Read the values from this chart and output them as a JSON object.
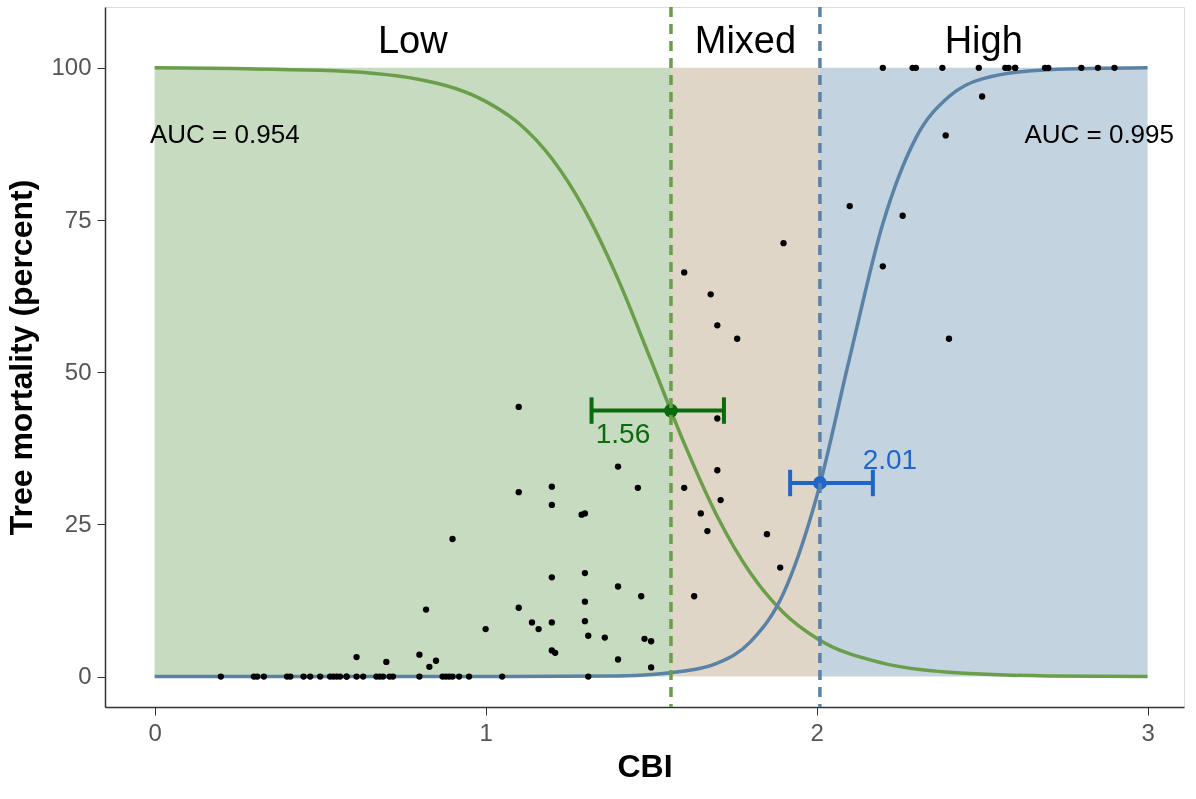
{
  "chart_data": {
    "type": "scatter",
    "xlabel": "CBI",
    "ylabel": "Tree mortality (percent)",
    "xlim": [
      -0.15,
      3.11
    ],
    "ylim": [
      -5,
      110
    ],
    "xticks": [
      0,
      1,
      2,
      3
    ],
    "yticks": [
      0,
      25,
      50,
      75,
      100
    ],
    "grid": false,
    "marker": "circle",
    "annotations": [
      "AUC = 0.954",
      "AUC = 0.995",
      {
        "text": "1.56",
        "x": 1.56,
        "y": 43.7
      },
      {
        "text": "2.01",
        "x": 2.01,
        "y": 31.8
      }
    ],
    "bands": [
      {
        "axis": "x",
        "from": 0,
        "to": 1.56,
        "label": "Low",
        "color": "#c6dbbf"
      },
      {
        "axis": "x",
        "from": 1.56,
        "to": 2.01,
        "label": "Mixed",
        "color": "#e0d6c8"
      },
      {
        "axis": "x",
        "from": 2.01,
        "to": 3,
        "label": "High",
        "color": "#c4d3e0"
      }
    ],
    "ref_lines": [
      {
        "axis": "x",
        "value": 1.56,
        "color": "#6a9e4a",
        "line_style": "dashed"
      },
      {
        "axis": "x",
        "value": 2.01,
        "color": "#5a82a6",
        "line_style": "dashed"
      }
    ],
    "series": [
      {
        "type": "line",
        "marker": "none",
        "line_style": "solid",
        "color": "#6a9e4a",
        "x": [
          0,
          0.5,
          0.8,
          1.0,
          1.1,
          1.2,
          1.3,
          1.4,
          1.5,
          1.6,
          1.7,
          1.8,
          1.9,
          2.0,
          2.2,
          2.4,
          2.7,
          3.0
        ],
        "values": [
          100,
          99.6,
          98.1,
          94.5,
          90.9,
          85.1,
          76.6,
          65.3,
          51.9,
          38.3,
          26.3,
          17.0,
          10.5,
          6.3,
          2.2,
          0.7,
          0.1,
          0
        ]
      },
      {
        "type": "line",
        "marker": "none",
        "line_style": "solid",
        "color": "#5a82a6",
        "x": [
          0,
          1.0,
          1.4,
          1.6,
          1.7,
          1.8,
          1.9,
          2.0,
          2.1,
          2.2,
          2.3,
          2.4,
          2.5,
          2.7,
          3.0
        ],
        "values": [
          0,
          0,
          0.1,
          0.9,
          2.2,
          5.7,
          13.7,
          29.5,
          52.4,
          74.4,
          88.5,
          95.3,
          98.2,
          99.7,
          100
        ]
      },
      {
        "color": "#000000",
        "x": [
          0.2,
          0.3,
          0.31,
          0.33,
          0.4,
          0.41,
          0.45,
          0.47,
          0.5,
          0.53,
          0.54,
          0.55,
          0.56,
          0.58,
          0.58,
          0.61,
          0.63,
          0.67,
          0.68,
          0.69,
          0.71,
          0.72,
          0.8,
          0.87,
          0.88,
          0.89,
          0.9,
          0.92,
          0.95,
          1.05,
          1.31,
          0.9,
          0.82,
          1.0,
          0.61,
          0.7,
          0.8,
          0.83,
          0.85,
          1.1,
          1.7,
          1.4,
          1.7,
          1.1,
          1.2,
          1.46,
          1.6,
          1.2,
          1.71,
          1.29,
          1.3,
          1.65,
          1.67,
          1.85,
          1.89,
          1.2,
          1.3,
          1.4,
          1.47,
          1.63,
          1.3,
          1.1,
          1.14,
          1.16,
          1.2,
          1.3,
          1.31,
          1.36,
          1.48,
          1.5,
          1.2,
          1.21,
          1.4,
          1.5,
          1.9,
          1.6,
          1.68,
          1.7,
          1.76,
          2.2,
          2.29,
          2.3,
          2.38,
          2.49,
          2.57,
          2.58,
          2.6,
          2.6,
          2.69,
          2.7,
          2.8,
          2.85,
          2.9,
          2.5,
          2.39,
          2.1,
          2.26,
          2.2,
          2.4
        ],
        "values": [
          0,
          0,
          0,
          0,
          0,
          0,
          0,
          0,
          0,
          0,
          0,
          0,
          0,
          0,
          0,
          0,
          0,
          0,
          0,
          0,
          0,
          0,
          0,
          0,
          0,
          0,
          0,
          0,
          0,
          0,
          0,
          22.6,
          11.0,
          7.8,
          3.2,
          2.4,
          3.6,
          1.6,
          2.6,
          44.3,
          42.4,
          34.5,
          33.9,
          30.3,
          31.2,
          31.0,
          31.0,
          28.2,
          29.0,
          26.6,
          26.8,
          26.8,
          23.9,
          23.4,
          17.9,
          16.3,
          17.0,
          14.8,
          13.2,
          13.2,
          12.3,
          11.3,
          8.9,
          7.8,
          8.9,
          9.1,
          6.7,
          6.4,
          6.2,
          5.8,
          4.3,
          3.9,
          2.8,
          1.5,
          71.2,
          66.4,
          62.8,
          57.7,
          55.5,
          100,
          100,
          100,
          100,
          100,
          100,
          100,
          100,
          100,
          100,
          100,
          100,
          100,
          100,
          95.3,
          88.9,
          77.3,
          75.7,
          67.4,
          55.5
        ]
      },
      {
        "color": "#0b6a0b",
        "x": [
          1.56
        ],
        "values": [
          43.7
        ],
        "xerrors": [
          [
            1.32,
            1.72
          ]
        ]
      },
      {
        "color": "#1f66c8",
        "x": [
          2.01
        ],
        "values": [
          31.8
        ],
        "xerrors": [
          [
            1.92,
            2.17
          ]
        ]
      }
    ]
  }
}
